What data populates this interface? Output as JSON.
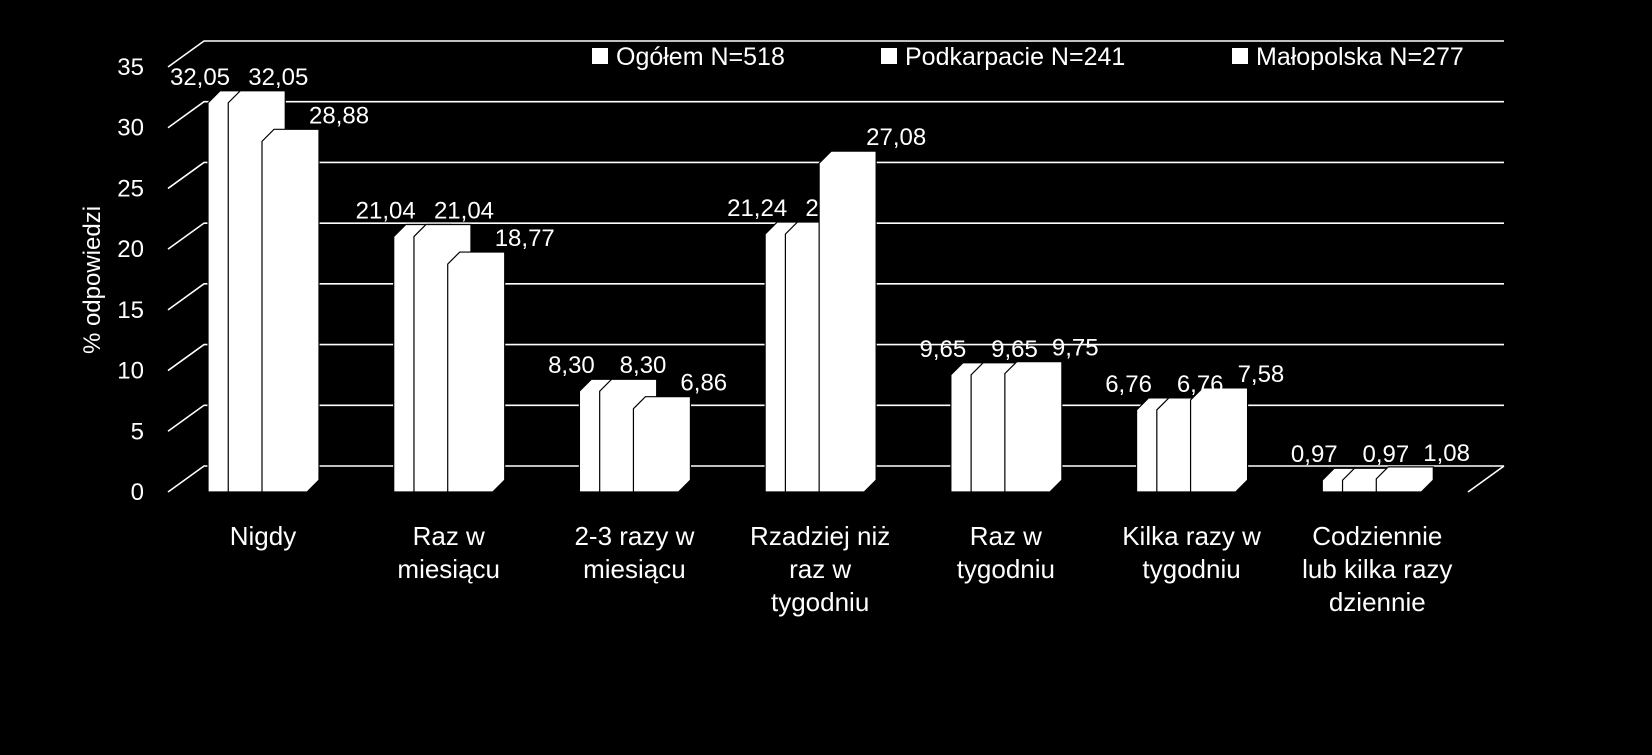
{
  "chart_data": {
    "type": "bar",
    "title": "",
    "ylabel": "% odpowiedzi",
    "xlabel": "",
    "ylim": [
      0,
      35
    ],
    "yticks": [
      0,
      5,
      10,
      15,
      20,
      25,
      30,
      35
    ],
    "grid": true,
    "legend_position": "top-right",
    "bar_color": "#ffffff",
    "background_color": "#000000",
    "categories": [
      [
        "Nigdy"
      ],
      [
        "Raz w",
        "miesiącu"
      ],
      [
        "2-3 razy w",
        "miesiącu"
      ],
      [
        "Rzadziej niż",
        "raz w",
        "tygodniu"
      ],
      [
        "Raz w",
        "tygodniu"
      ],
      [
        "Kilka razy w",
        "tygodniu"
      ],
      [
        "Codziennie",
        "lub kilka razy",
        "dziennie"
      ]
    ],
    "series": [
      {
        "name": "Ogółem N=518",
        "values": [
          32.05,
          21.04,
          8.3,
          21.24,
          9.65,
          6.76,
          0.97
        ],
        "labels": [
          "32,05",
          "21,04",
          "8,30",
          "21,24",
          "9,65",
          "6,76",
          "0,97"
        ]
      },
      {
        "name": "Podkarpacie N=241",
        "values": [
          32.05,
          21.04,
          8.3,
          21.24,
          9.65,
          6.76,
          0.97
        ],
        "labels": [
          "32,05",
          "21,04",
          "8,30",
          "21,24",
          "9,65",
          "6,76",
          "0,97"
        ]
      },
      {
        "name": "Małopolska N=277",
        "values": [
          28.88,
          18.77,
          6.86,
          27.08,
          9.75,
          7.58,
          1.08
        ],
        "labels": [
          "28,88",
          "18,77",
          "6,86",
          "27,08",
          "9,75",
          "7,58",
          "1,08"
        ]
      }
    ]
  }
}
